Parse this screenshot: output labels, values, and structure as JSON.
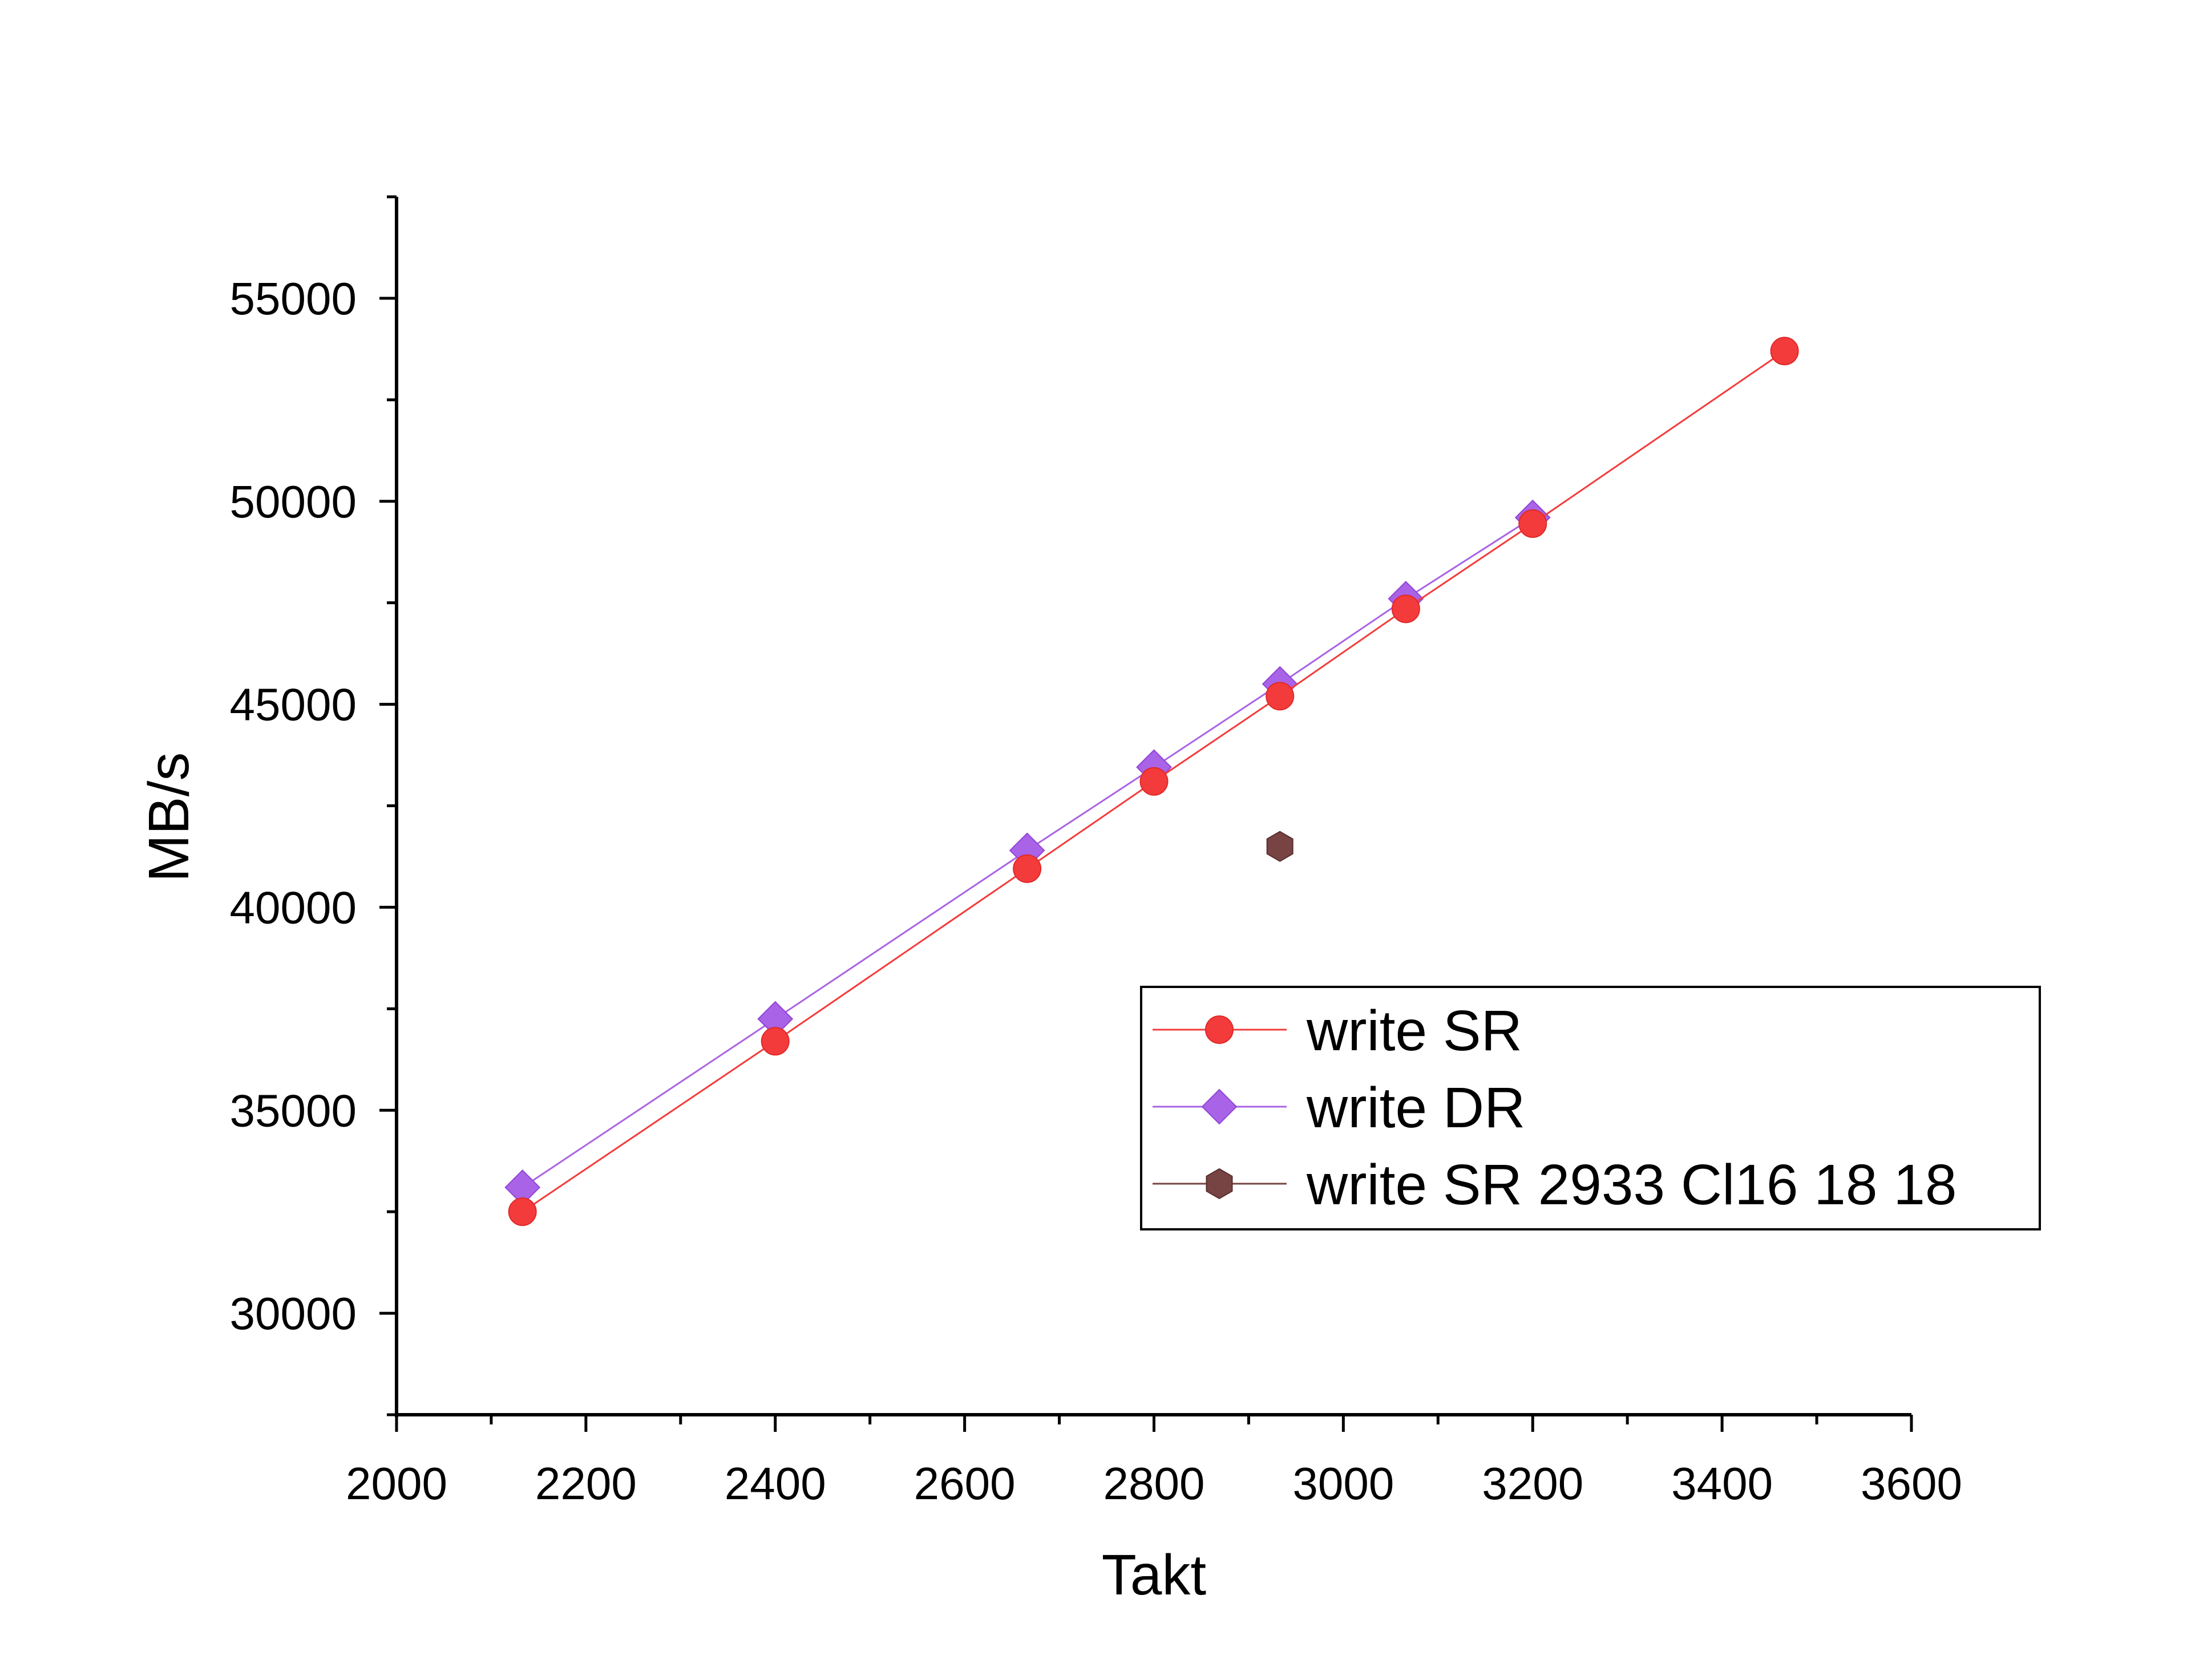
{
  "chart_data": {
    "type": "line",
    "xlabel": "Takt",
    "ylabel": "MB/s",
    "xlim": [
      2000,
      3600
    ],
    "ylim": [
      27500,
      57500
    ],
    "x_ticks": [
      2000,
      2200,
      2400,
      2600,
      2800,
      3000,
      3200,
      3400,
      3600
    ],
    "y_ticks": [
      30000,
      35000,
      40000,
      45000,
      50000,
      55000
    ],
    "grid": false,
    "legend_position": "bottom-right",
    "series": [
      {
        "name": "write SR",
        "color": "#f43b3b",
        "marker": "circle",
        "line": true,
        "x": [
          2133,
          2400,
          2666,
          2800,
          2933,
          3066,
          3200,
          3466
        ],
        "y": [
          32500,
          36700,
          40950,
          43100,
          45200,
          47350,
          49450,
          53700
        ]
      },
      {
        "name": "write DR",
        "color": "#a963e6",
        "marker": "diamond",
        "line": true,
        "x": [
          2133,
          2400,
          2666,
          2800,
          2933,
          3066,
          3200
        ],
        "y": [
          33100,
          37250,
          41400,
          43450,
          45500,
          47600,
          49600
        ]
      },
      {
        "name": "write SR 2933 Cl16 18 18",
        "color": "#774343",
        "marker": "hexagon",
        "line": false,
        "x": [
          2933
        ],
        "y": [
          41500
        ]
      }
    ]
  }
}
